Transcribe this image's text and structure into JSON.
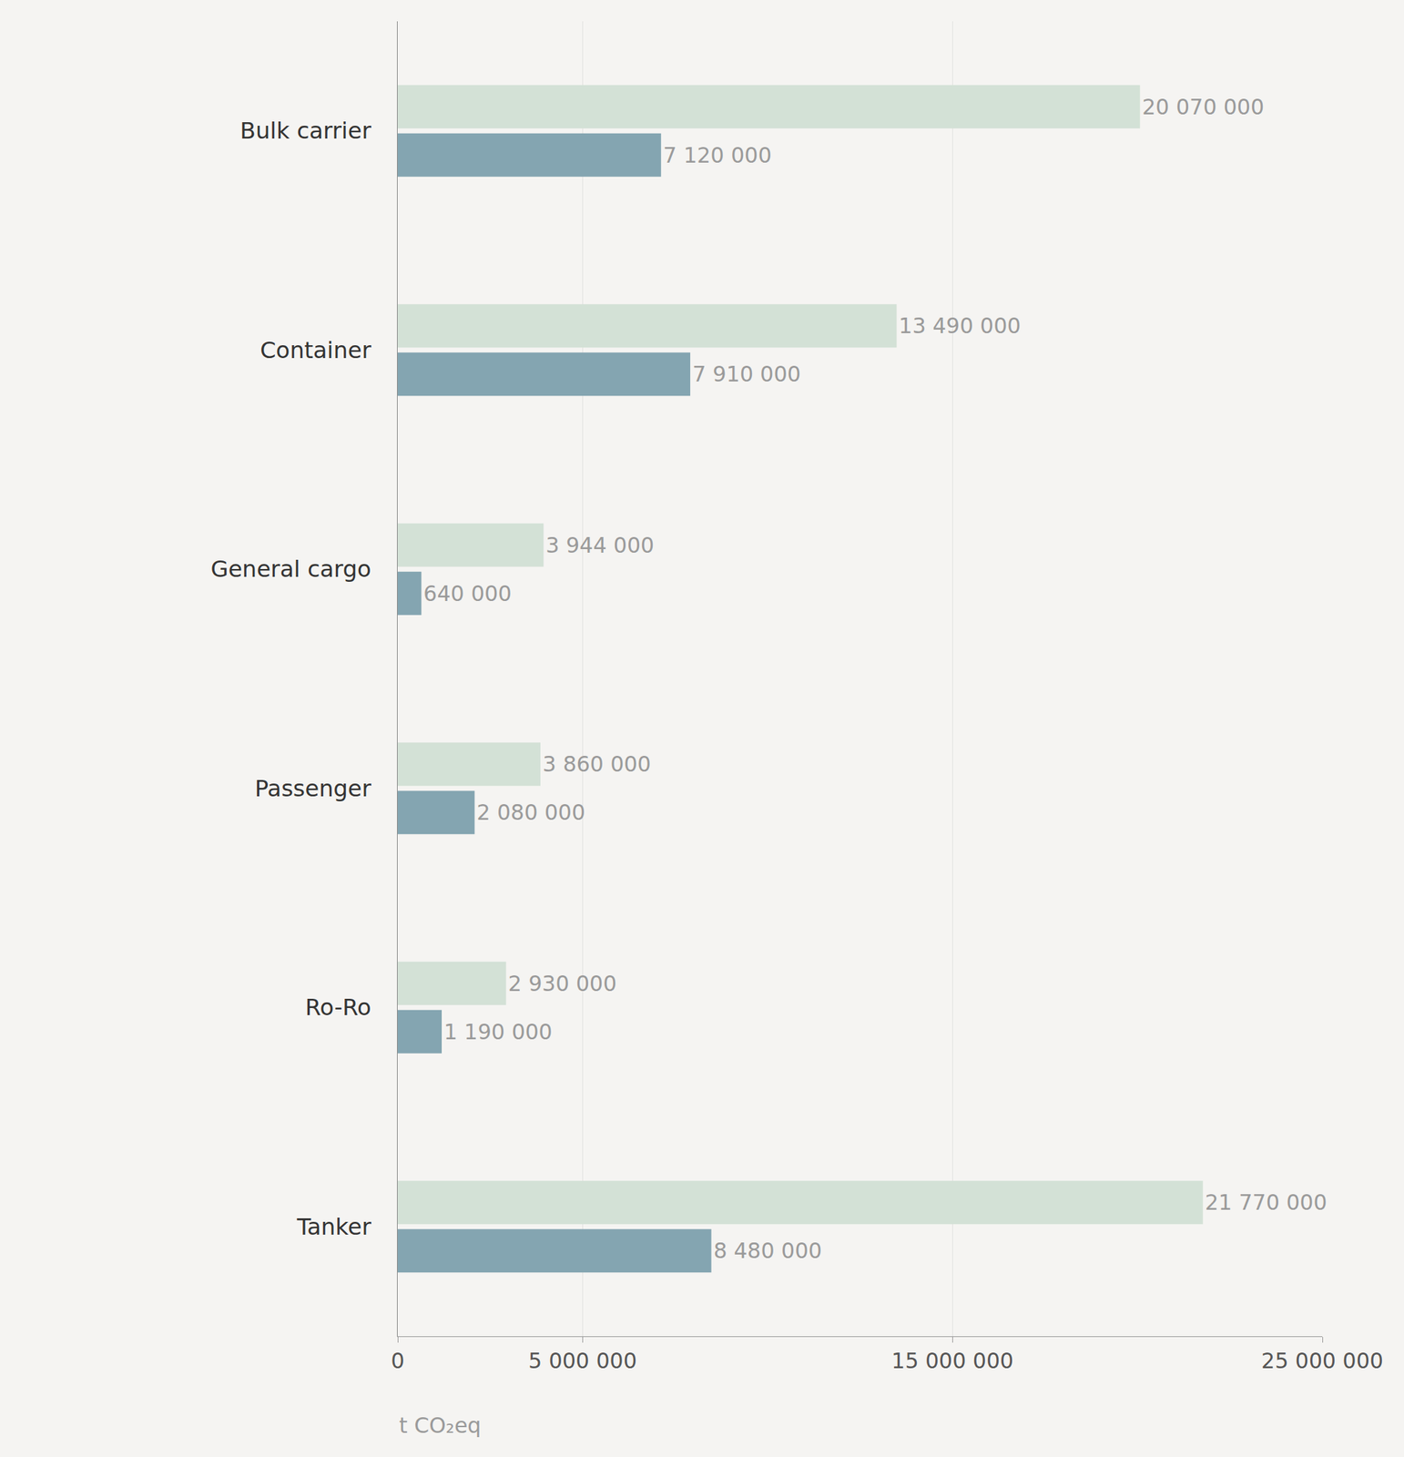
{
  "chart_data": {
    "type": "bar",
    "orientation": "horizontal",
    "categories": [
      "Bulk carrier",
      "Container",
      "General cargo",
      "Passenger",
      "Ro-Ro",
      "Tanker"
    ],
    "series": [
      {
        "color": "#d3e1d6",
        "values": [
          20070000,
          13490000,
          3944000,
          3860000,
          2930000,
          21770000
        ],
        "value_labels": [
          "20 070 000",
          "13 490 000",
          "3 944 000",
          "3 860 000",
          "2 930 000",
          "21 770 000"
        ]
      },
      {
        "color": "#84a5b1",
        "values": [
          7120000,
          7910000,
          640000,
          2080000,
          1190000,
          8480000
        ],
        "value_labels": [
          "7 120 000",
          "7 910 000",
          "640 000",
          "2 080 000",
          "1 190 000",
          "8 480 000"
        ]
      }
    ],
    "x_label": "t CO₂eq",
    "xlim": [
      0,
      25000000
    ],
    "xticks": [
      0,
      {
        "value": 5000000,
        "label": "5 000 000"
      },
      {
        "value": 15000000,
        "label": "15 000 000"
      },
      {
        "value": 25000000,
        "label": "25 000 000"
      }
    ],
    "grid": true,
    "data_labels": true
  }
}
